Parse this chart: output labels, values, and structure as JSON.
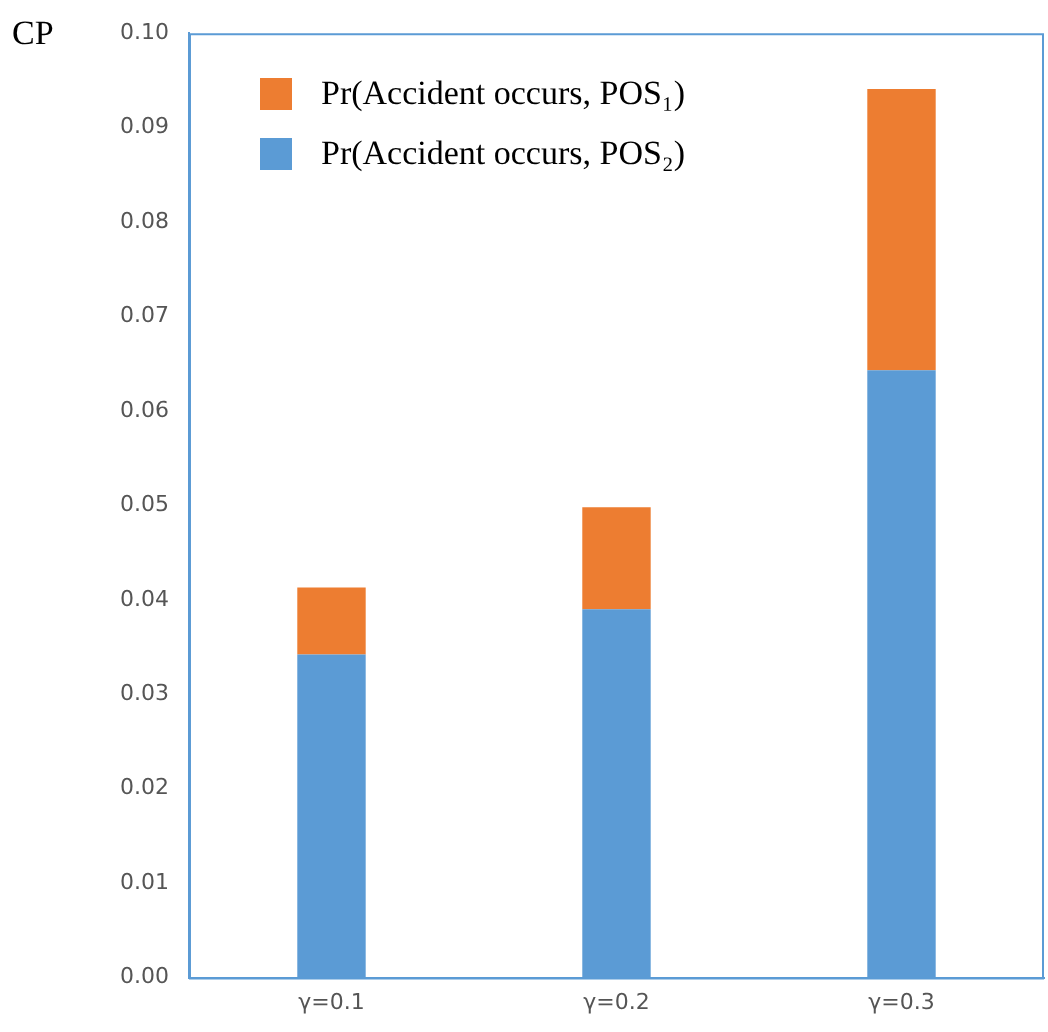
{
  "chart_data": {
    "type": "bar",
    "ylabel": "CP",
    "categories": [
      "γ=0.1",
      "γ=0.2",
      "γ=0.3"
    ],
    "stacked": true,
    "legend": "top left",
    "grid": false,
    "series": [
      {
        "name": "Pr(Accident occurs, POS₂)",
        "color": "#5b9bd5",
        "values": [
          0.0342,
          0.039,
          0.0643
        ]
      },
      {
        "name": "Pr(Accident occurs, POS₁)",
        "color": "#ed7d31",
        "values": [
          0.0071,
          0.0108,
          0.0298
        ]
      }
    ],
    "ylim": [
      0,
      0.1
    ],
    "yticks": [
      {
        "value": 0,
        "label": "0.00"
      },
      {
        "value": 0.01,
        "label": "0.01"
      },
      {
        "value": 0.02,
        "label": "0.02"
      },
      {
        "value": 0.03,
        "label": "0.03"
      },
      {
        "value": 0.04,
        "label": "0.04"
      },
      {
        "value": 0.05,
        "label": "0.05"
      },
      {
        "value": 0.06,
        "label": "0.06"
      },
      {
        "value": 0.07,
        "label": "0.07"
      },
      {
        "value": 0.08,
        "label": "0.08"
      },
      {
        "value": 0.09,
        "label": "0.09"
      },
      {
        "value": 0.1,
        "label": "0.10"
      }
    ]
  }
}
